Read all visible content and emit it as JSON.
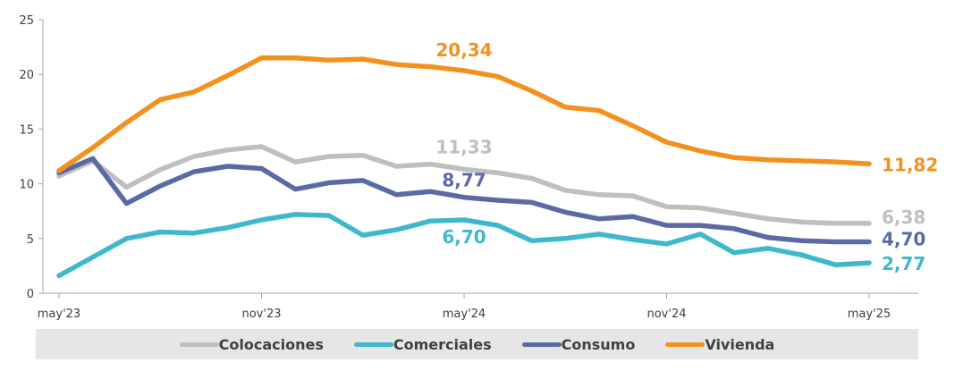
{
  "chart_data": {
    "type": "line",
    "title": "",
    "xlabel": "",
    "ylabel": "",
    "ylim": [
      0,
      25
    ],
    "yticks": [
      "0",
      "5",
      "10",
      "15",
      "20",
      "25"
    ],
    "x": [
      "may'23",
      "jun'23",
      "jul'23",
      "ago'23",
      "sep'23",
      "oct'23",
      "nov'23",
      "dic'23",
      "ene'24",
      "feb'24",
      "mar'24",
      "abr'24",
      "may'24",
      "jun'24",
      "jul'24",
      "ago'24",
      "sep'24",
      "oct'24",
      "nov'24",
      "dic'24",
      "ene'25",
      "feb'25",
      "mar'25",
      "abr'25",
      "may'25"
    ],
    "xtick_labels": [
      "may'23",
      "nov'23",
      "may'24",
      "nov'24",
      "may'25"
    ],
    "xtick_index": [
      0,
      6,
      12,
      18,
      24
    ],
    "grid": false,
    "legend_position": "bottom",
    "series": [
      {
        "name": "Colocaciones",
        "color": "#bfbfbf",
        "values": [
          10.7,
          12.1,
          9.7,
          11.3,
          12.5,
          13.1,
          13.4,
          12.0,
          12.5,
          12.6,
          11.6,
          11.8,
          11.33,
          11.0,
          10.5,
          9.4,
          9.0,
          8.9,
          7.9,
          7.8,
          7.3,
          6.8,
          6.5,
          6.38,
          6.38
        ],
        "labels": [
          {
            "index": 12,
            "text": "11,33"
          },
          {
            "index": 24,
            "text": "6,38"
          }
        ]
      },
      {
        "name": "Comerciales",
        "color": "#40b8cc",
        "values": [
          1.6,
          3.3,
          5.0,
          5.6,
          5.5,
          6.0,
          6.7,
          7.2,
          7.1,
          5.3,
          5.8,
          6.6,
          6.7,
          6.2,
          4.8,
          5.0,
          5.4,
          4.9,
          4.5,
          5.4,
          3.7,
          4.1,
          3.5,
          2.6,
          2.77
        ],
        "labels": [
          {
            "index": 12,
            "text": "6,70"
          },
          {
            "index": 24,
            "text": "2,77"
          }
        ]
      },
      {
        "name": "Consumo",
        "color": "#5b6aa6",
        "values": [
          11.0,
          12.3,
          8.2,
          9.8,
          11.1,
          11.6,
          11.4,
          9.5,
          10.1,
          10.3,
          9.0,
          9.3,
          8.77,
          8.5,
          8.3,
          7.4,
          6.8,
          7.0,
          6.2,
          6.2,
          5.9,
          5.1,
          4.8,
          4.7,
          4.7
        ],
        "labels": [
          {
            "index": 12,
            "text": "8,77"
          },
          {
            "index": 24,
            "text": "4,70"
          }
        ]
      },
      {
        "name": "Vivienda",
        "color": "#f4911e",
        "values": [
          11.2,
          13.3,
          15.6,
          17.7,
          18.4,
          19.9,
          21.5,
          21.5,
          21.3,
          21.4,
          20.9,
          20.7,
          20.34,
          19.8,
          18.5,
          17.0,
          16.7,
          15.3,
          13.8,
          13.0,
          12.4,
          12.2,
          12.1,
          12.0,
          11.82
        ],
        "labels": [
          {
            "index": 12,
            "text": "20,34"
          },
          {
            "index": 24,
            "text": "11,82"
          }
        ]
      }
    ]
  }
}
